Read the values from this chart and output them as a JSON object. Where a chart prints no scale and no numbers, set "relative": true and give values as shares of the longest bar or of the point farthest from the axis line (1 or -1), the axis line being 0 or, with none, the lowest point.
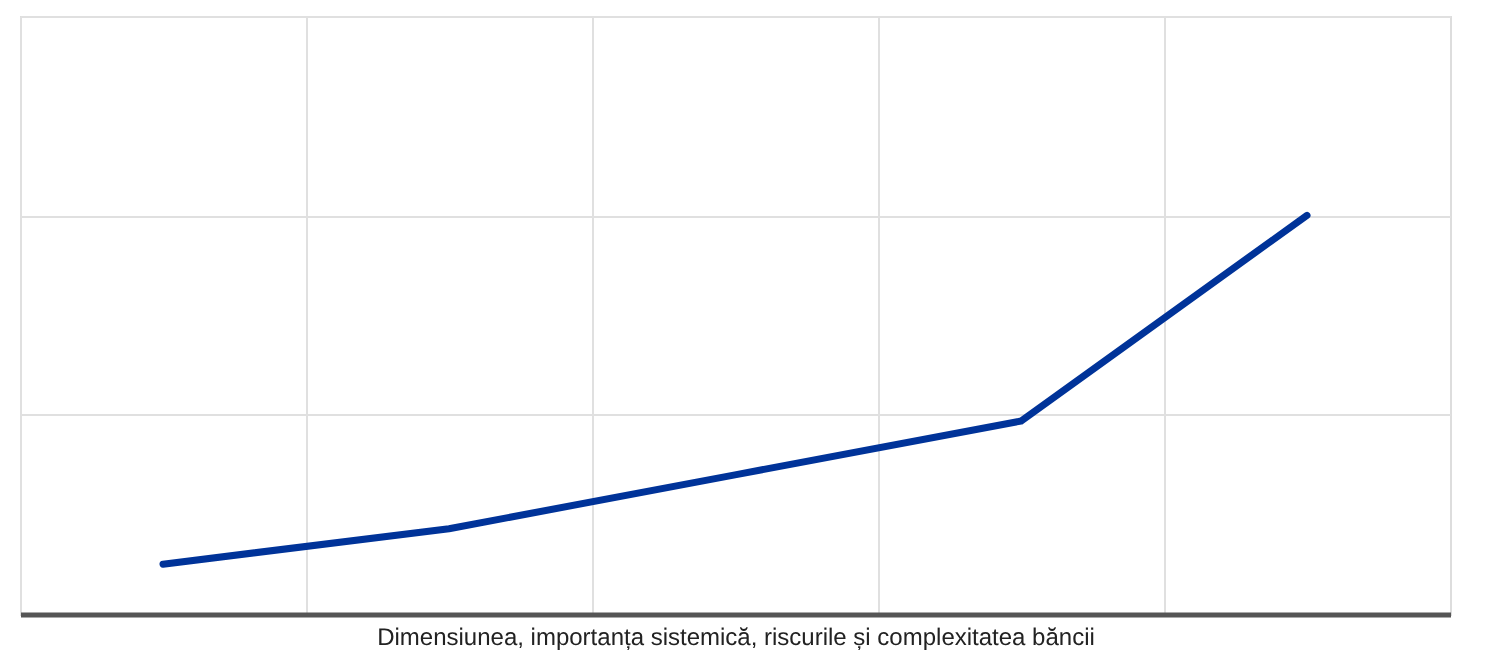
{
  "chart_data": {
    "type": "line",
    "xlabel": "Dimensiunea, importanța sistemică, riscurile și complexitatea băncii",
    "categories": [
      null,
      null,
      null,
      null,
      null
    ],
    "relative": true,
    "series": [
      {
        "color": "#003399",
        "values": [
          0.125,
          0.214,
          0.349,
          0.484,
          1.0
        ]
      }
    ],
    "grid": true,
    "marker": "none",
    "line_style": "solid",
    "legend": false
  }
}
